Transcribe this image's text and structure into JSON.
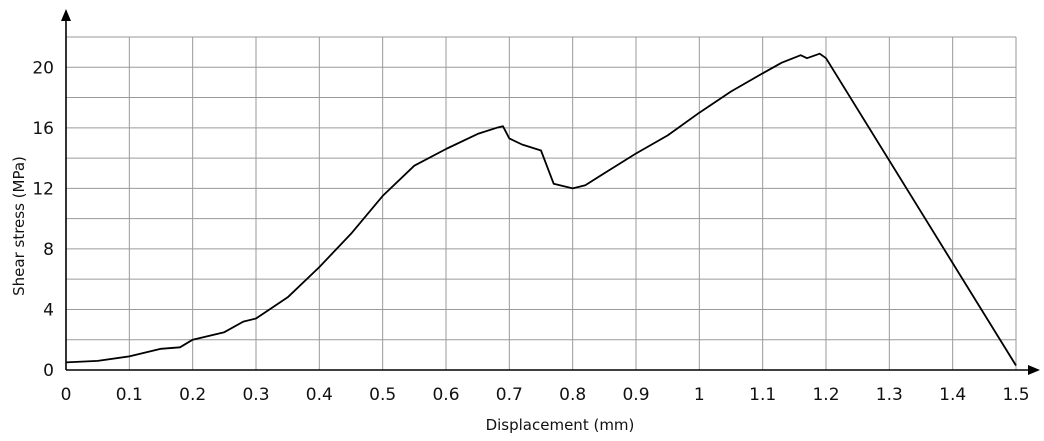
{
  "chart_data": {
    "type": "line",
    "title": "",
    "xlabel": "Displacement (mm)",
    "ylabel": "Shear stress (MPa)",
    "xlim": [
      0,
      1.5
    ],
    "ylim": [
      0,
      22
    ],
    "grid": true,
    "x_ticks": [
      0,
      0.1,
      0.2,
      0.3,
      0.4,
      0.5,
      0.6,
      0.7,
      0.8,
      0.9,
      1,
      1.1,
      1.2,
      1.3,
      1.4,
      1.5
    ],
    "x_tick_labels": [
      "0",
      "0.1",
      "0.2",
      "0.3",
      "0.4",
      "0.5",
      "0.6",
      "0.7",
      "0.8",
      "0.9",
      "1",
      "1.1",
      "1.2",
      "1.3",
      "1.4",
      "1.5"
    ],
    "y_ticks": [
      0,
      4,
      8,
      12,
      16,
      20
    ],
    "y_tick_labels": [
      "0",
      "4",
      "8",
      "12",
      "16",
      "20"
    ],
    "series": [
      {
        "x": [
          0,
          0.05,
          0.1,
          0.15,
          0.18,
          0.2,
          0.25,
          0.28,
          0.3,
          0.35,
          0.4,
          0.45,
          0.5,
          0.55,
          0.6,
          0.65,
          0.68,
          0.69,
          0.7,
          0.72,
          0.75,
          0.77,
          0.8,
          0.82,
          0.85,
          0.9,
          0.95,
          1.0,
          1.05,
          1.1,
          1.13,
          1.16,
          1.17,
          1.19,
          1.2,
          1.5
        ],
        "y": [
          0.5,
          0.6,
          0.9,
          1.4,
          1.5,
          2.0,
          2.5,
          3.2,
          3.4,
          4.8,
          6.8,
          9.0,
          11.5,
          13.5,
          14.6,
          15.6,
          16.0,
          16.1,
          15.3,
          14.9,
          14.5,
          12.3,
          12.0,
          12.2,
          13.0,
          14.3,
          15.5,
          17.0,
          18.4,
          19.6,
          20.3,
          20.8,
          20.6,
          20.9,
          20.6,
          0.3
        ]
      }
    ]
  }
}
